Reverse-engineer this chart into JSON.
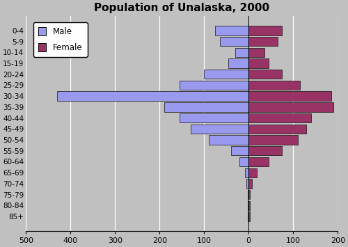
{
  "title": "Population of Unalaska, 2000",
  "age_groups": [
    "0-4",
    "5-9",
    "10-14",
    "15-19",
    "20-24",
    "25-29",
    "30-34",
    "35-39",
    "40-44",
    "45-49",
    "50-54",
    "55-59",
    "60-64",
    "65-69",
    "70-74",
    "75-79",
    "80-84",
    "85+"
  ],
  "male": [
    75,
    65,
    30,
    45,
    100,
    155,
    430,
    190,
    155,
    130,
    90,
    40,
    20,
    8,
    5,
    2,
    2,
    2
  ],
  "female": [
    75,
    65,
    35,
    45,
    75,
    115,
    185,
    190,
    140,
    130,
    110,
    75,
    45,
    18,
    8,
    3,
    2,
    2
  ],
  "male_color": "#9999ee",
  "female_color": "#993366",
  "male_edge": "#111111",
  "female_edge": "#111111",
  "background_color": "#c0c0c0",
  "grid_color": "#ffffff",
  "bar_height": 0.85,
  "legend_male": "Male",
  "legend_female": "Female",
  "title_fontsize": 11,
  "tick_fontsize": 7.5,
  "xtick_fontsize": 8
}
